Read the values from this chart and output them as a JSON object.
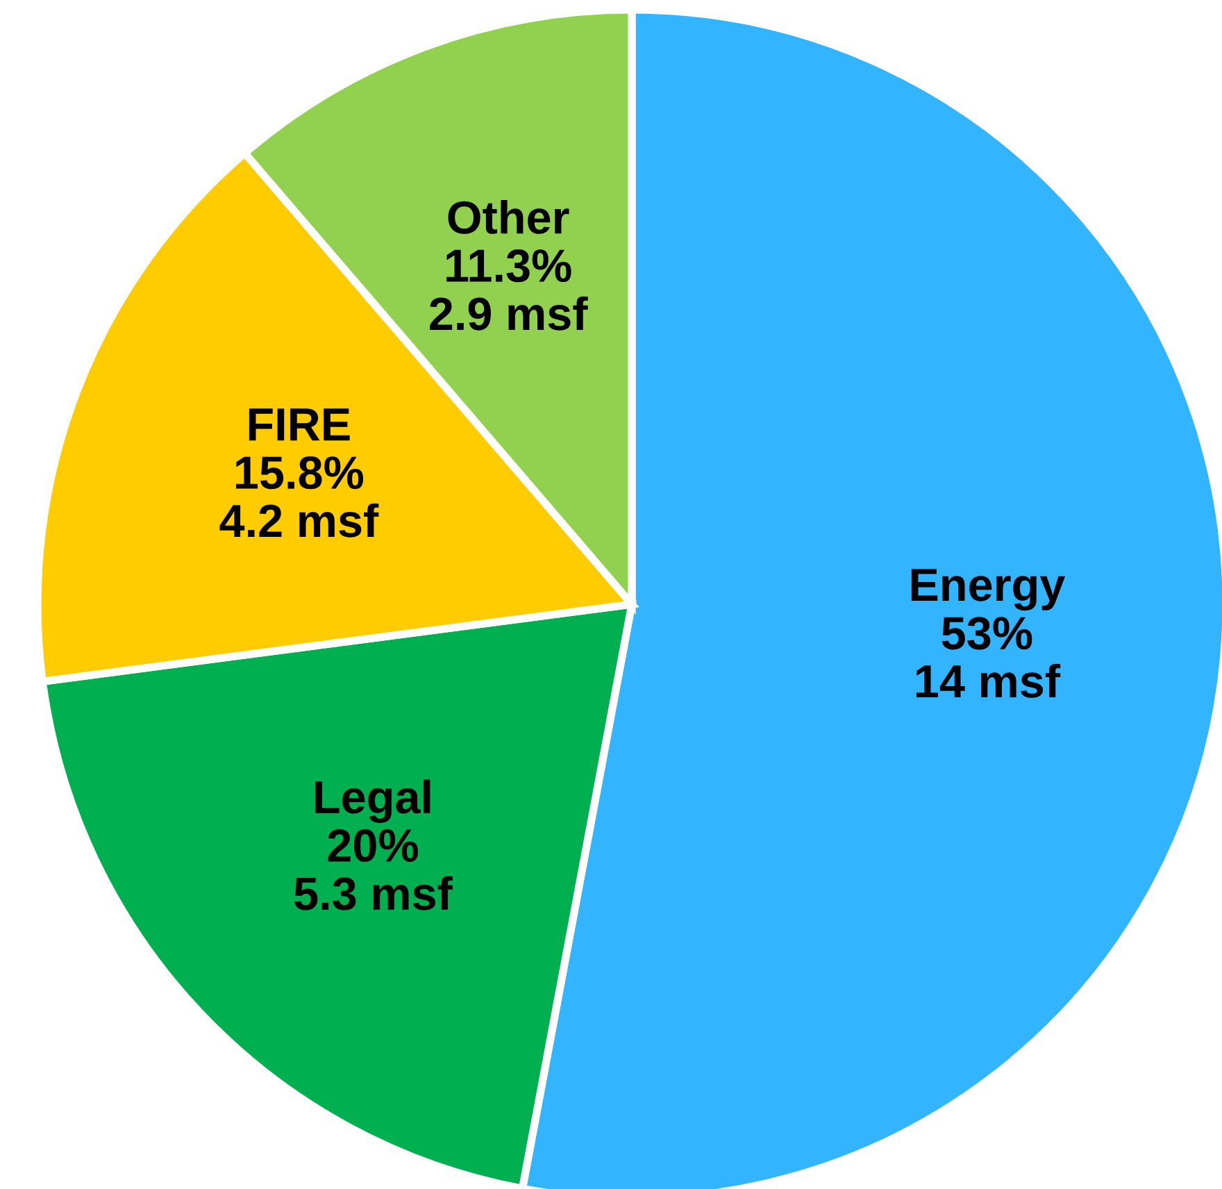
{
  "chart_data": {
    "type": "pie",
    "categories": [
      "Energy",
      "Legal",
      "FIRE",
      "Other"
    ],
    "values": [
      53,
      20,
      15.8,
      11.3
    ],
    "colors": [
      "#33b4ff",
      "#00b050",
      "#ffcc00",
      "#92d050"
    ],
    "value_labels": [
      "53%\n14 msf",
      "20%\n5.3 msf",
      "15.8%\n4.2 msf",
      "11.3%\n2.9 msf"
    ],
    "legend": false
  }
}
